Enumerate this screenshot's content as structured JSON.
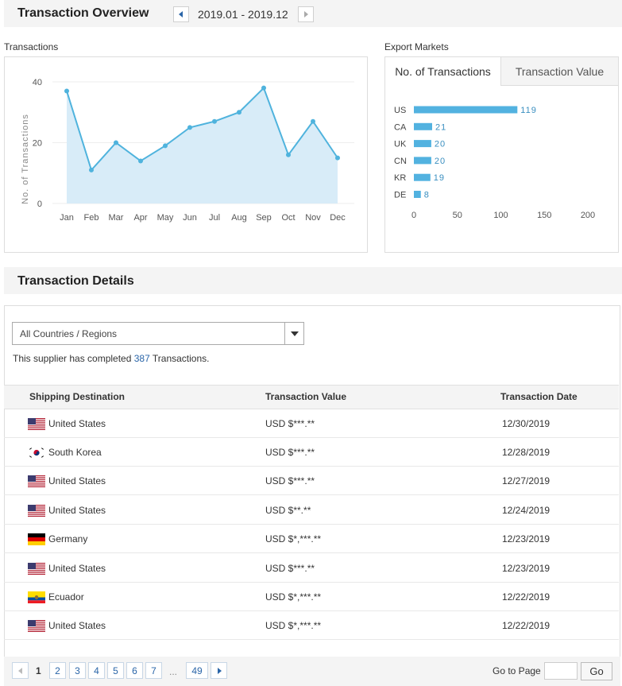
{
  "overview": {
    "title": "Transaction Overview",
    "date_range": "2019.01 - 2019.12"
  },
  "transactions_panel": {
    "label": "Transactions",
    "y_axis_label": "No. of Transactions"
  },
  "export_panel": {
    "label": "Export Markets",
    "tabs": [
      {
        "label": "No. of Transactions",
        "active": true
      },
      {
        "label": "Transaction Value",
        "active": false
      }
    ]
  },
  "chart_data": [
    {
      "type": "area",
      "title": "Transactions",
      "ylabel": "No. of Transactions",
      "categories": [
        "Jan",
        "Feb",
        "Mar",
        "Apr",
        "May",
        "Jun",
        "Jul",
        "Aug",
        "Sep",
        "Oct",
        "Nov",
        "Dec"
      ],
      "values": [
        37,
        11,
        20,
        14,
        19,
        25,
        27,
        30,
        38,
        16,
        27,
        15
      ],
      "yticks": [
        0,
        20,
        40
      ],
      "ylim": [
        0,
        40
      ],
      "color": "#4fb3dd",
      "fill": "#d8ecf8"
    },
    {
      "type": "bar",
      "orientation": "horizontal",
      "title": "Export Markets",
      "categories": [
        "US",
        "CA",
        "UK",
        "CN",
        "KR",
        "DE"
      ],
      "values": [
        119,
        21,
        20,
        20,
        19,
        8
      ],
      "xticks": [
        0,
        50,
        100,
        150,
        200
      ],
      "xlim": [
        0,
        200
      ],
      "color": "#52b2e0"
    }
  ],
  "details": {
    "title": "Transaction Details",
    "filter_selected": "All Countries / Regions",
    "summary_prefix": "This supplier has completed ",
    "summary_count": "387",
    "summary_suffix": " Transactions.",
    "columns": {
      "destination": "Shipping Destination",
      "value": "Transaction Value",
      "date": "Transaction Date"
    },
    "rows": [
      {
        "country": "United States",
        "flag": "us-flag-icon",
        "value": "USD $***.**",
        "date": "12/30/2019"
      },
      {
        "country": "South Korea",
        "flag": "kr-flag-icon",
        "value": "USD $***.**",
        "date": "12/28/2019"
      },
      {
        "country": "United States",
        "flag": "us-flag-icon",
        "value": "USD $***.**",
        "date": "12/27/2019"
      },
      {
        "country": "United States",
        "flag": "us-flag-icon",
        "value": "USD $**.**",
        "date": "12/24/2019"
      },
      {
        "country": "Germany",
        "flag": "de-flag-icon",
        "value": "USD $*,***.**",
        "date": "12/23/2019"
      },
      {
        "country": "United States",
        "flag": "us-flag-icon",
        "value": "USD $***.**",
        "date": "12/23/2019"
      },
      {
        "country": "Ecuador",
        "flag": "ec-flag-icon",
        "value": "USD $*,***.**",
        "date": "12/22/2019"
      },
      {
        "country": "United States",
        "flag": "us-flag-icon",
        "value": "USD $*,***.**",
        "date": "12/22/2019"
      }
    ]
  },
  "pagination": {
    "current": "1",
    "pages": [
      "2",
      "3",
      "4",
      "5",
      "6",
      "7"
    ],
    "ellipsis": "...",
    "last": "49",
    "goto_label": "Go to Page",
    "go_button": "Go"
  }
}
